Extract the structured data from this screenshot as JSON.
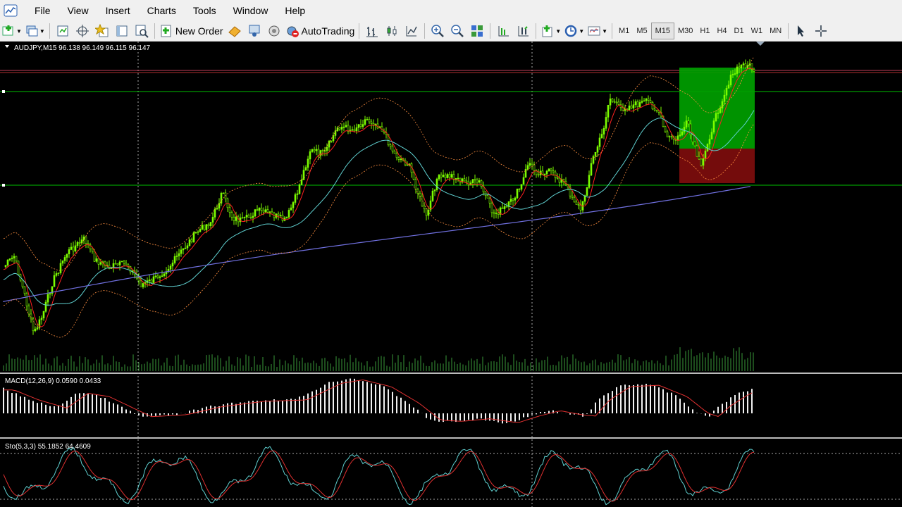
{
  "menu": [
    "File",
    "View",
    "Insert",
    "Charts",
    "Tools",
    "Window",
    "Help"
  ],
  "toolbar": {
    "new_order": "New Order",
    "autotrading": "AutoTrading",
    "timeframes": [
      "M1",
      "M5",
      "M15",
      "M30",
      "H1",
      "H4",
      "D1",
      "W1",
      "MN"
    ],
    "active_timeframe": "M15"
  },
  "chart": {
    "symbol_header": "AUDJPY,M15  96.138 96.149 96.115 96.147",
    "macd_header": "MACD(12,26,9) 0.0590 0.0433",
    "sto_header": "Sto(5,3,3) 55.1852 64.4609",
    "colors": {
      "candle": "#7CFC00",
      "ma_fast": "#ff2020",
      "ma_mid": "#5fd0d0",
      "ma_slow": "#7070e0",
      "bands": "#ff9040",
      "level": "#00c000",
      "profit_zone": "#00a000",
      "loss_zone": "#7a0d0d"
    }
  }
}
